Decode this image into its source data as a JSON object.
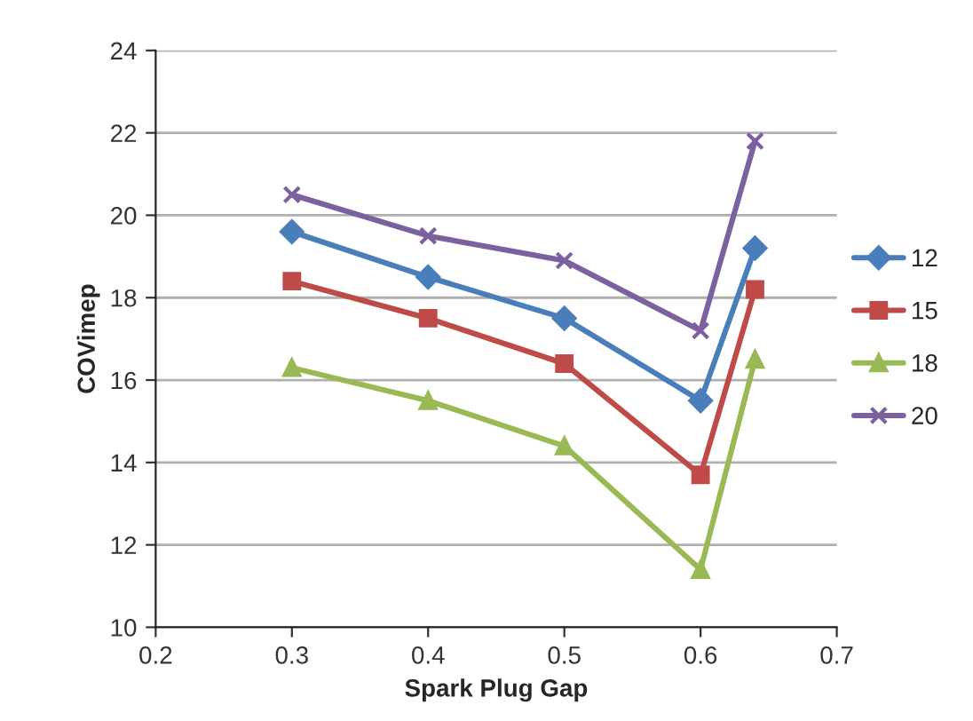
{
  "chart_data": {
    "type": "line",
    "xlabel": "Spark Plug Gap",
    "ylabel": "COVimep",
    "x": [
      0.3,
      0.4,
      0.5,
      0.6,
      0.64
    ],
    "series": [
      {
        "name": "12",
        "color": "#4a7ebb",
        "marker": "diamond",
        "values": [
          19.6,
          18.5,
          17.5,
          15.5,
          19.2
        ]
      },
      {
        "name": "15",
        "color": "#be4b48",
        "marker": "square",
        "values": [
          18.4,
          17.5,
          16.4,
          13.7,
          18.2
        ]
      },
      {
        "name": "18",
        "color": "#98b954",
        "marker": "triangle",
        "values": [
          16.3,
          15.5,
          14.4,
          11.4,
          16.5
        ]
      },
      {
        "name": "20",
        "color": "#7d60a0",
        "marker": "cross",
        "values": [
          20.5,
          19.5,
          18.9,
          17.2,
          21.8
        ]
      }
    ],
    "xlim": [
      0.2,
      0.7
    ],
    "xticks": [
      0.2,
      0.3,
      0.4,
      0.5,
      0.6,
      0.7
    ],
    "ylim": [
      10,
      24
    ],
    "yticks": [
      10,
      12,
      14,
      16,
      18,
      20,
      22,
      24
    ],
    "grid": "y",
    "legend": "right",
    "line_style": "solid"
  }
}
